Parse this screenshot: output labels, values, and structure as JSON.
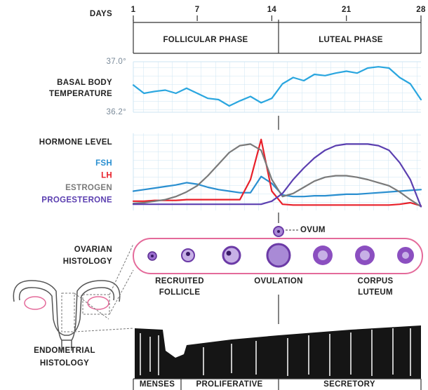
{
  "chart_data": [
    {
      "type": "line",
      "xlabel": "DAYS",
      "ylabel": [
        "BASAL BODY",
        "TEMPERATURE"
      ],
      "x": [
        1,
        2,
        3,
        4,
        5,
        6,
        7,
        8,
        9,
        10,
        11,
        12,
        13,
        14,
        15,
        16,
        17,
        18,
        19,
        20,
        21,
        22,
        23,
        24,
        25,
        26,
        27,
        28
      ],
      "values": [
        36.63,
        36.5,
        36.53,
        36.55,
        36.5,
        36.58,
        36.5,
        36.42,
        36.4,
        36.3,
        36.38,
        36.45,
        36.35,
        36.42,
        36.65,
        36.75,
        36.7,
        36.8,
        36.78,
        36.82,
        36.85,
        36.82,
        36.9,
        36.92,
        36.9,
        36.75,
        36.65,
        36.4
      ],
      "color": "#2aa6df",
      "xlim": [
        1,
        28
      ],
      "xticks": [
        1,
        7,
        14,
        21,
        28
      ],
      "ylim": [
        36.2,
        37.0
      ],
      "yticks": [
        {
          "value": 37.0,
          "label": "37.0°"
        },
        {
          "value": 36.2,
          "label": "36.2°"
        }
      ],
      "grid": true
    },
    {
      "type": "line",
      "title": "HORMONE LEVEL",
      "x": [
        1,
        2,
        3,
        4,
        5,
        6,
        7,
        8,
        9,
        10,
        11,
        12,
        13,
        14,
        15,
        16,
        17,
        18,
        19,
        20,
        21,
        22,
        23,
        24,
        25,
        26,
        27,
        28
      ],
      "xlim": [
        1,
        28
      ],
      "ylim": [
        0,
        100
      ],
      "grid": true,
      "series": [
        {
          "name": "FSH",
          "color": "#2a8fd0",
          "values": [
            25,
            27,
            29,
            31,
            33,
            36,
            34,
            30,
            27,
            25,
            23,
            23,
            44,
            35,
            20,
            18,
            18,
            19,
            19,
            20,
            21,
            21,
            22,
            23,
            24,
            25,
            26,
            27
          ]
        },
        {
          "name": "LH",
          "color": "#e8202a",
          "values": [
            12,
            12,
            13,
            13,
            13,
            14,
            14,
            14,
            14,
            14,
            14,
            40,
            92,
            25,
            8,
            7,
            7,
            7,
            7,
            7,
            7,
            7,
            7,
            7,
            7,
            8,
            10,
            6
          ]
        },
        {
          "name": "ESTROGEN",
          "color": "#7a7a7a",
          "values": [
            9,
            10,
            12,
            14,
            18,
            24,
            32,
            45,
            60,
            75,
            84,
            86,
            78,
            40,
            18,
            22,
            30,
            38,
            43,
            45,
            45,
            43,
            40,
            36,
            32,
            24,
            14,
            5
          ]
        },
        {
          "name": "PROGESTERONE",
          "color": "#5b3fb0",
          "values": [
            8,
            8,
            8,
            8,
            8,
            8,
            8,
            8,
            8,
            8,
            8,
            8,
            8,
            12,
            22,
            40,
            55,
            68,
            78,
            84,
            86,
            86,
            86,
            84,
            78,
            62,
            40,
            5
          ]
        }
      ]
    }
  ],
  "phases": [
    "FOLLICULAR PHASE",
    "LUTEAL PHASE"
  ],
  "ovarian": {
    "label": [
      "OVARIAN",
      "HISTOLOGY"
    ],
    "ovum": "OVUM",
    "stages": [
      [
        "RECRUITED",
        "FOLLICLE"
      ],
      [
        "OVULATION"
      ],
      [
        "CORPUS",
        "LUTEUM"
      ]
    ]
  },
  "endometrial": {
    "label": [
      "ENDOMETRIAL",
      "HISTOLOGY"
    ],
    "phases": [
      "MENSES",
      "PROLIFERATIVE",
      "SECRETORY"
    ]
  }
}
